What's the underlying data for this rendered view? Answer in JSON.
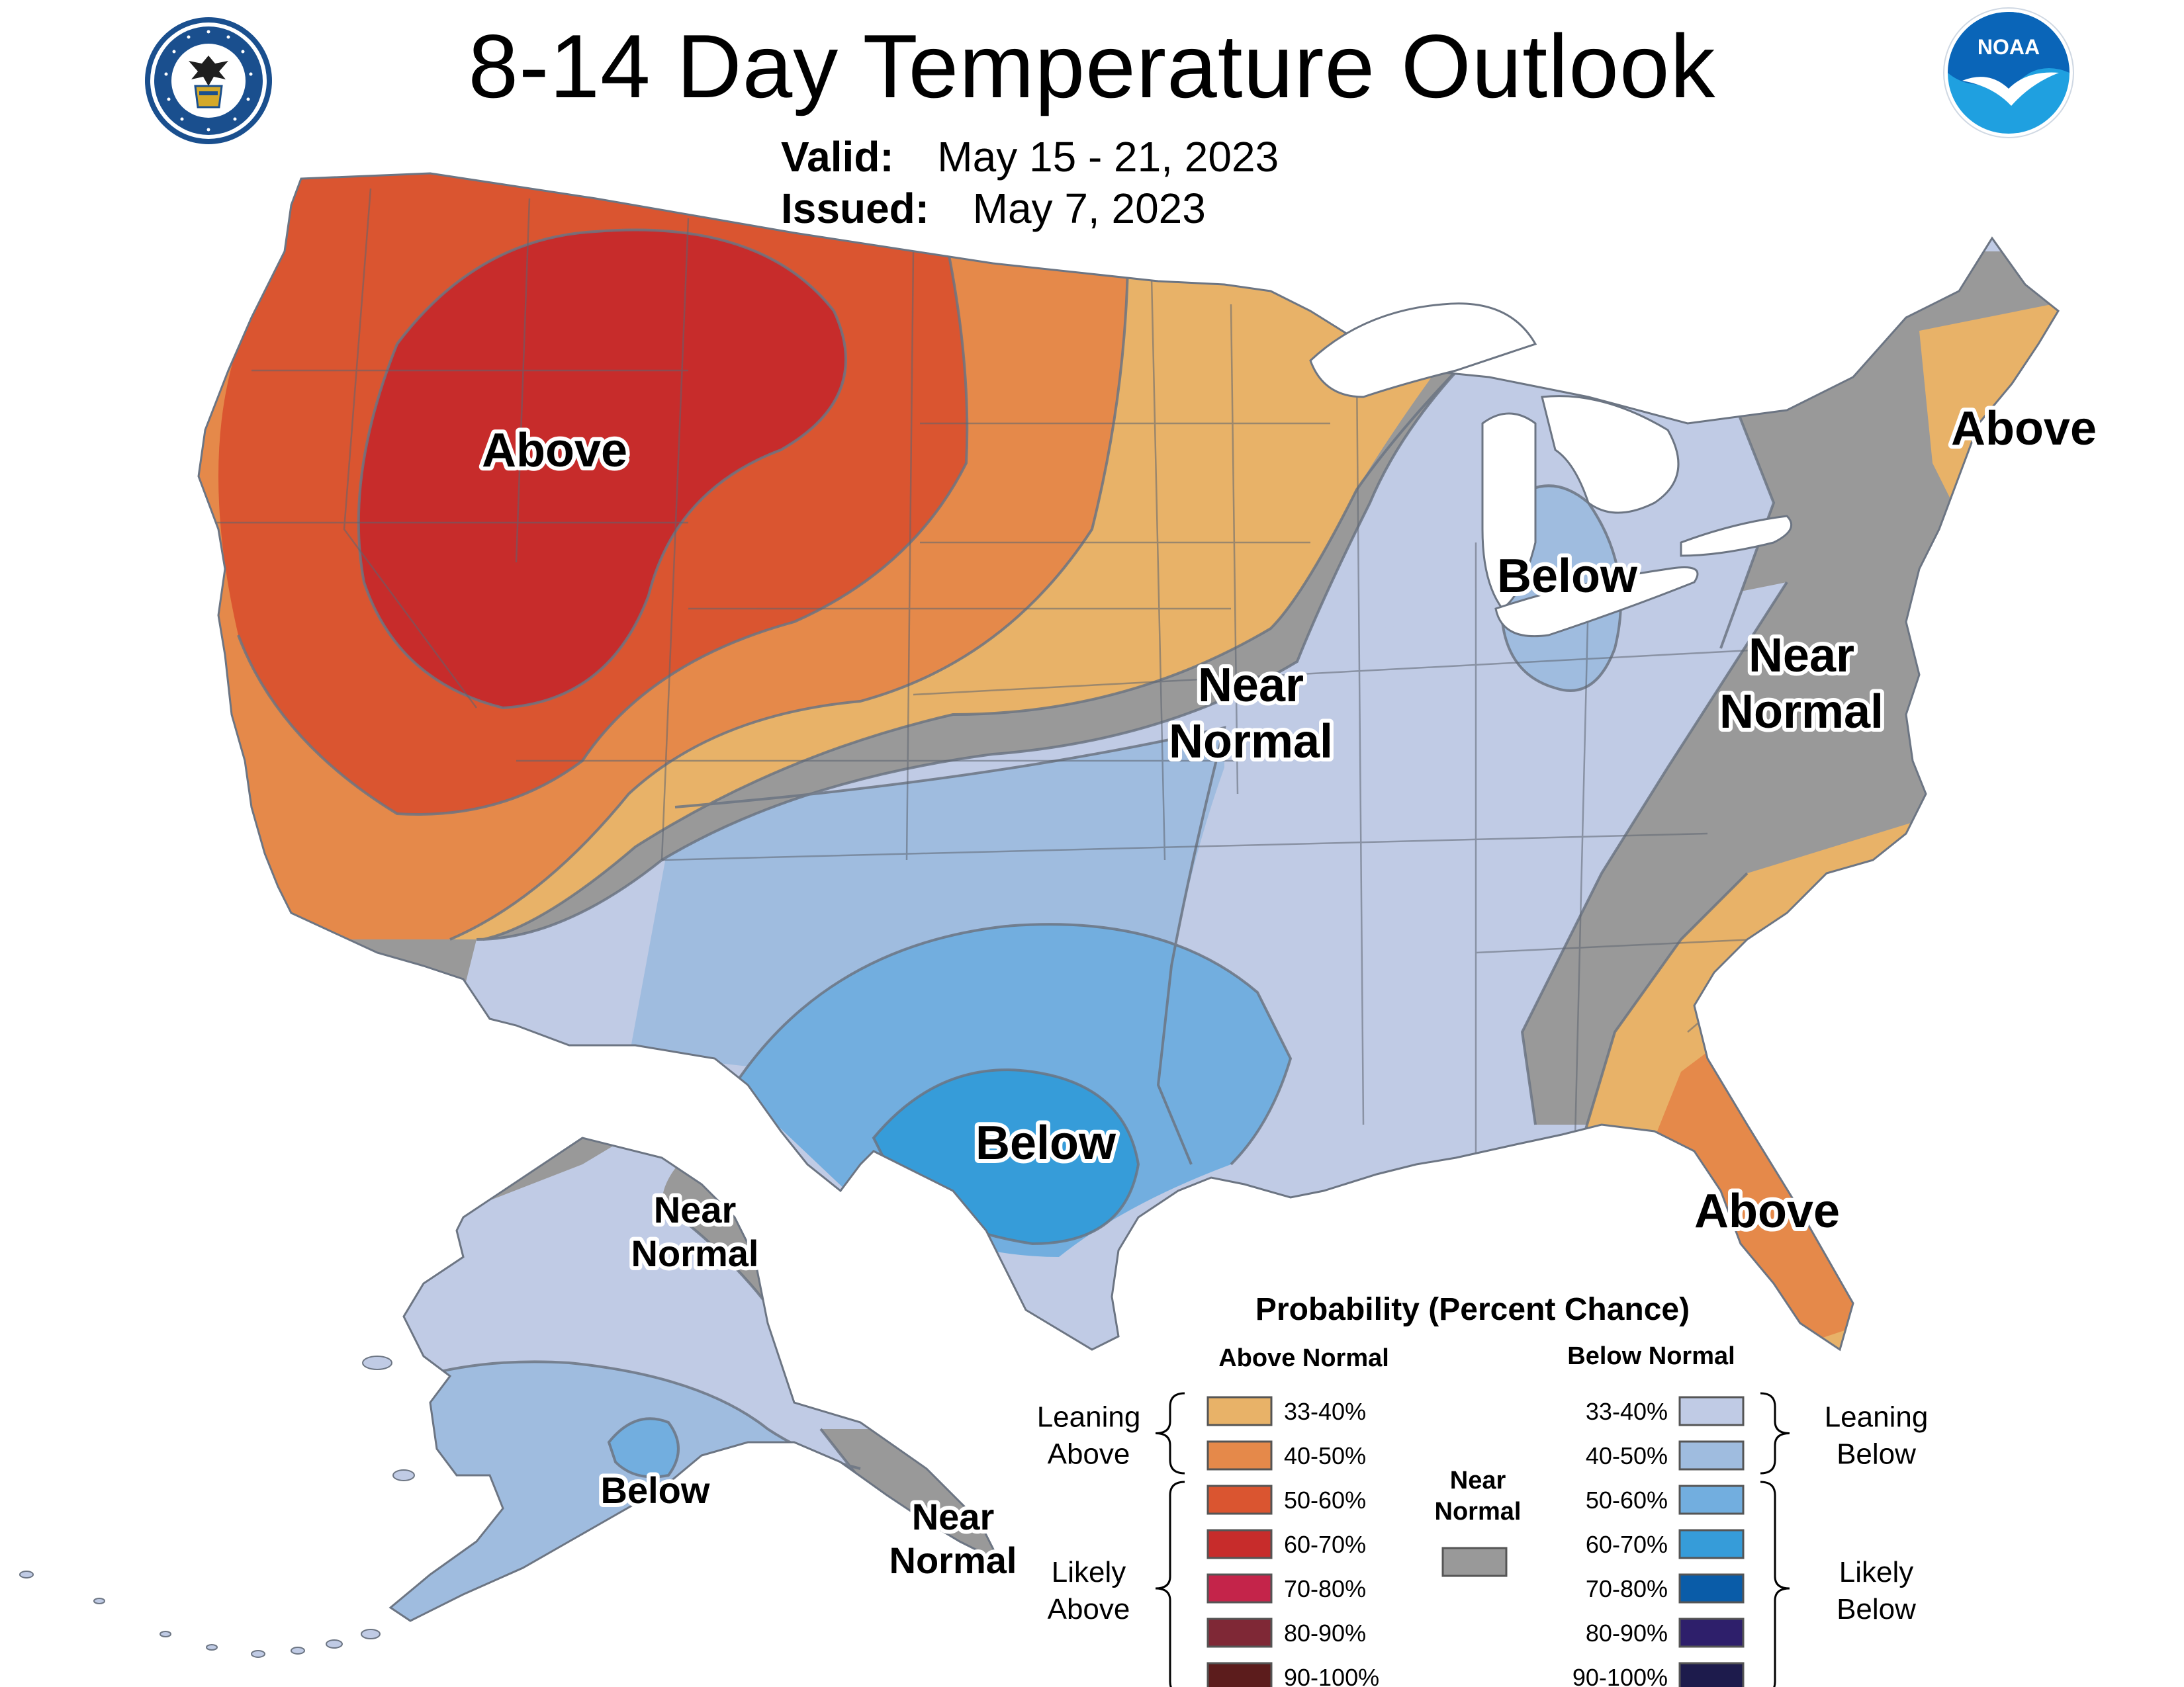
{
  "header": {
    "title": "8-14 Day Temperature Outlook",
    "valid_label": "Valid:",
    "valid_value": "May 15 - 21, 2023",
    "issued_label": "Issued:",
    "issued_value": "May 7, 2023",
    "left_logo": {
      "icon": "department-of-commerce-seal-icon",
      "ring_text": "DEPARTMENT OF COMMERCE · UNITED STATES OF AMERICA",
      "colors": [
        "#1a4f8e",
        "#ffffff",
        "#d4a92a"
      ]
    },
    "right_logo": {
      "icon": "noaa-logo-icon",
      "text": "NOAA",
      "colors": [
        "#0a65b8",
        "#1fa0e0",
        "#ffffff"
      ]
    }
  },
  "map_labels": {
    "conus": [
      {
        "id": "above-northwest",
        "lines": [
          "Above"
        ]
      },
      {
        "id": "above-northeast",
        "lines": [
          "Above"
        ]
      },
      {
        "id": "below-great-lakes",
        "lines": [
          "Below"
        ]
      },
      {
        "id": "below-texas",
        "lines": [
          "Below"
        ]
      },
      {
        "id": "near-normal-central",
        "lines": [
          "Near",
          "Normal"
        ]
      },
      {
        "id": "near-normal-east",
        "lines": [
          "Near",
          "Normal"
        ]
      },
      {
        "id": "above-florida",
        "lines": [
          "Above"
        ]
      }
    ],
    "alaska": [
      {
        "id": "ak-near-normal-north",
        "lines": [
          "Near",
          "Normal"
        ]
      },
      {
        "id": "ak-below",
        "lines": [
          "Below"
        ]
      },
      {
        "id": "ak-near-normal-panhandle",
        "lines": [
          "Near",
          "Normal"
        ]
      }
    ]
  },
  "legend": {
    "title": "Probability (Percent Chance)",
    "above_header": "Above Normal",
    "below_header": "Below Normal",
    "near_header": [
      "Near",
      "Normal"
    ],
    "near_color": "#999999",
    "above_groups": [
      {
        "label": [
          "Leaning",
          "Above"
        ],
        "span": 2
      },
      {
        "label": [
          "Likely",
          "Above"
        ],
        "span": 5
      }
    ],
    "below_groups": [
      {
        "label": [
          "Leaning",
          "Below"
        ],
        "span": 2
      },
      {
        "label": [
          "Likely",
          "Below"
        ],
        "span": 5
      }
    ],
    "above_categories": [
      {
        "range": "33-40%",
        "color": "#e8b268"
      },
      {
        "range": "40-50%",
        "color": "#e5894a"
      },
      {
        "range": "50-60%",
        "color": "#da5530"
      },
      {
        "range": "60-70%",
        "color": "#c72c2b"
      },
      {
        "range": "70-80%",
        "color": "#c4244a"
      },
      {
        "range": "80-90%",
        "color": "#7f2836"
      },
      {
        "range": "90-100%",
        "color": "#5c1c1c"
      }
    ],
    "below_categories": [
      {
        "range": "33-40%",
        "color": "#c0cbe5"
      },
      {
        "range": "40-50%",
        "color": "#9fbcdf"
      },
      {
        "range": "50-60%",
        "color": "#72aedf"
      },
      {
        "range": "60-70%",
        "color": "#369cd9"
      },
      {
        "range": "70-80%",
        "color": "#0a5ca8"
      },
      {
        "range": "80-90%",
        "color": "#2e1f6b"
      },
      {
        "range": "90-100%",
        "color": "#1d1b4c"
      }
    ]
  }
}
